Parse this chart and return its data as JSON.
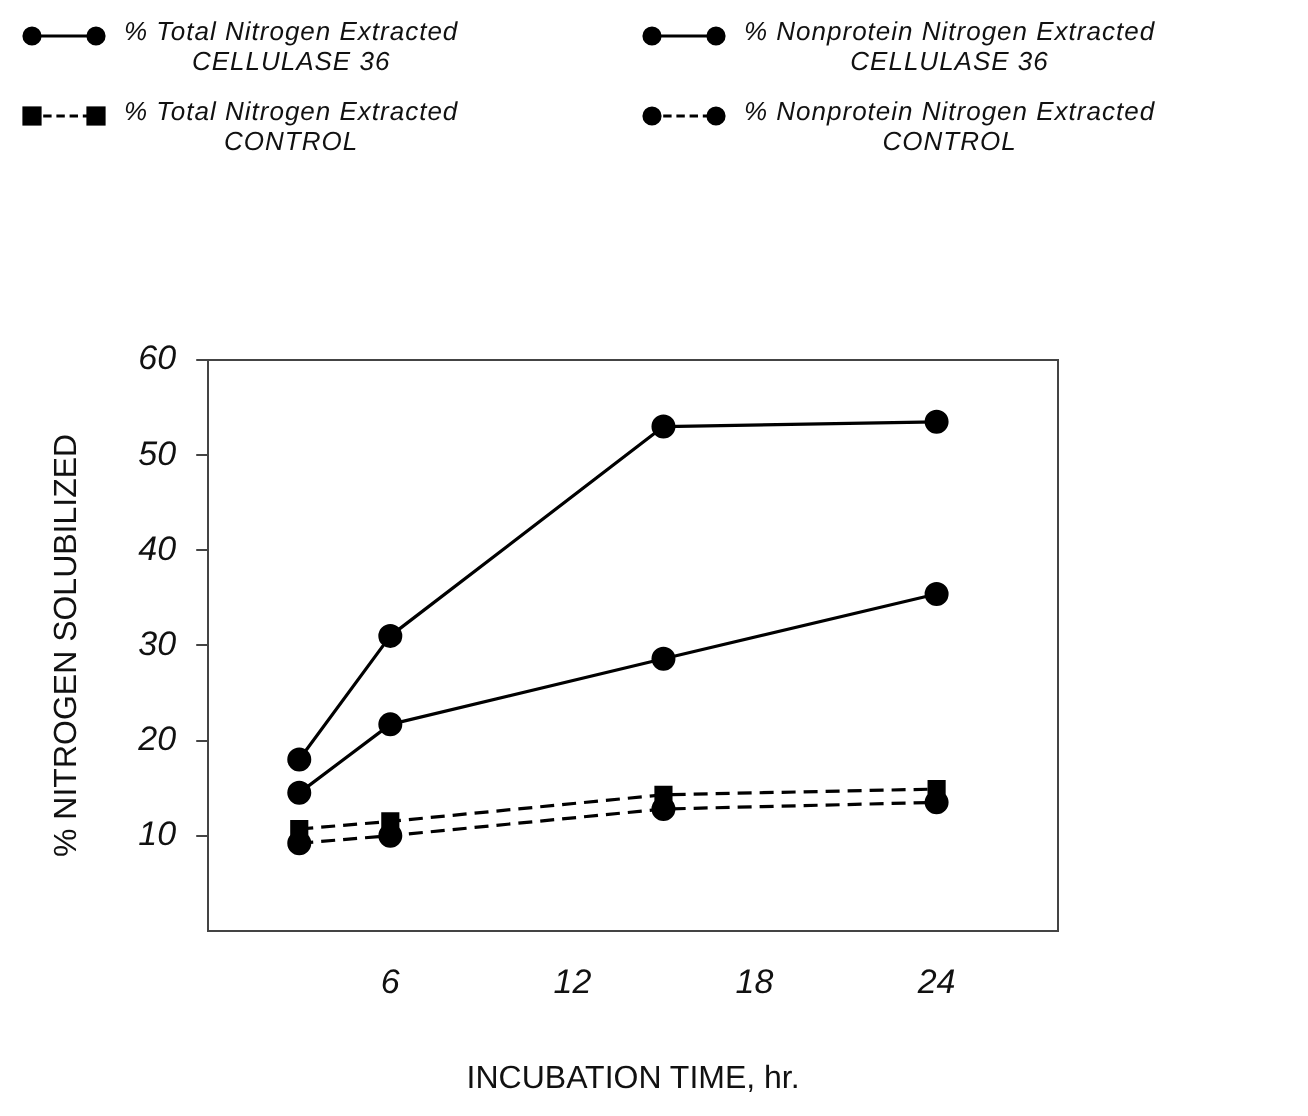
{
  "chart_data": {
    "type": "line",
    "xlabel": "INCUBATION TIME, hr.",
    "ylabel": "% NITROGEN SOLUBILIZED",
    "xlim": [
      0,
      28
    ],
    "xticks": [
      6,
      12,
      18,
      24
    ],
    "ylim": [
      0,
      60
    ],
    "yticks": [
      10,
      20,
      30,
      40,
      50,
      60
    ],
    "grid": false,
    "legend": "top",
    "series": [
      {
        "name": "% Total Nitrogen Extracted\nCELLULASE 36",
        "color": "#000000",
        "x": [
          3,
          6,
          15,
          24
        ],
        "values": [
          18,
          31,
          53,
          53.5
        ],
        "line_style": "solid",
        "marker": "circle"
      },
      {
        "name": "% Nonprotein Nitrogen Extracted\nCELLULASE 36",
        "color": "#000000",
        "x": [
          3,
          6,
          15,
          24
        ],
        "values": [
          14.5,
          21.7,
          28.6,
          35.4
        ],
        "line_style": "solid",
        "marker": "circle"
      },
      {
        "name": "% Total Nitrogen Extracted\nCONTROL",
        "color": "#000000",
        "x": [
          3,
          6,
          15,
          24
        ],
        "values": [
          10.7,
          11.5,
          14.3,
          14.9
        ],
        "line_style": "dashed",
        "marker": "square"
      },
      {
        "name": "% Nonprotein Nitrogen Extracted\nCONTROL",
        "color": "#000000",
        "x": [
          3,
          6,
          15,
          24
        ],
        "values": [
          9.2,
          10,
          12.8,
          13.5
        ],
        "line_style": "dashed",
        "marker": "circle"
      }
    ]
  }
}
